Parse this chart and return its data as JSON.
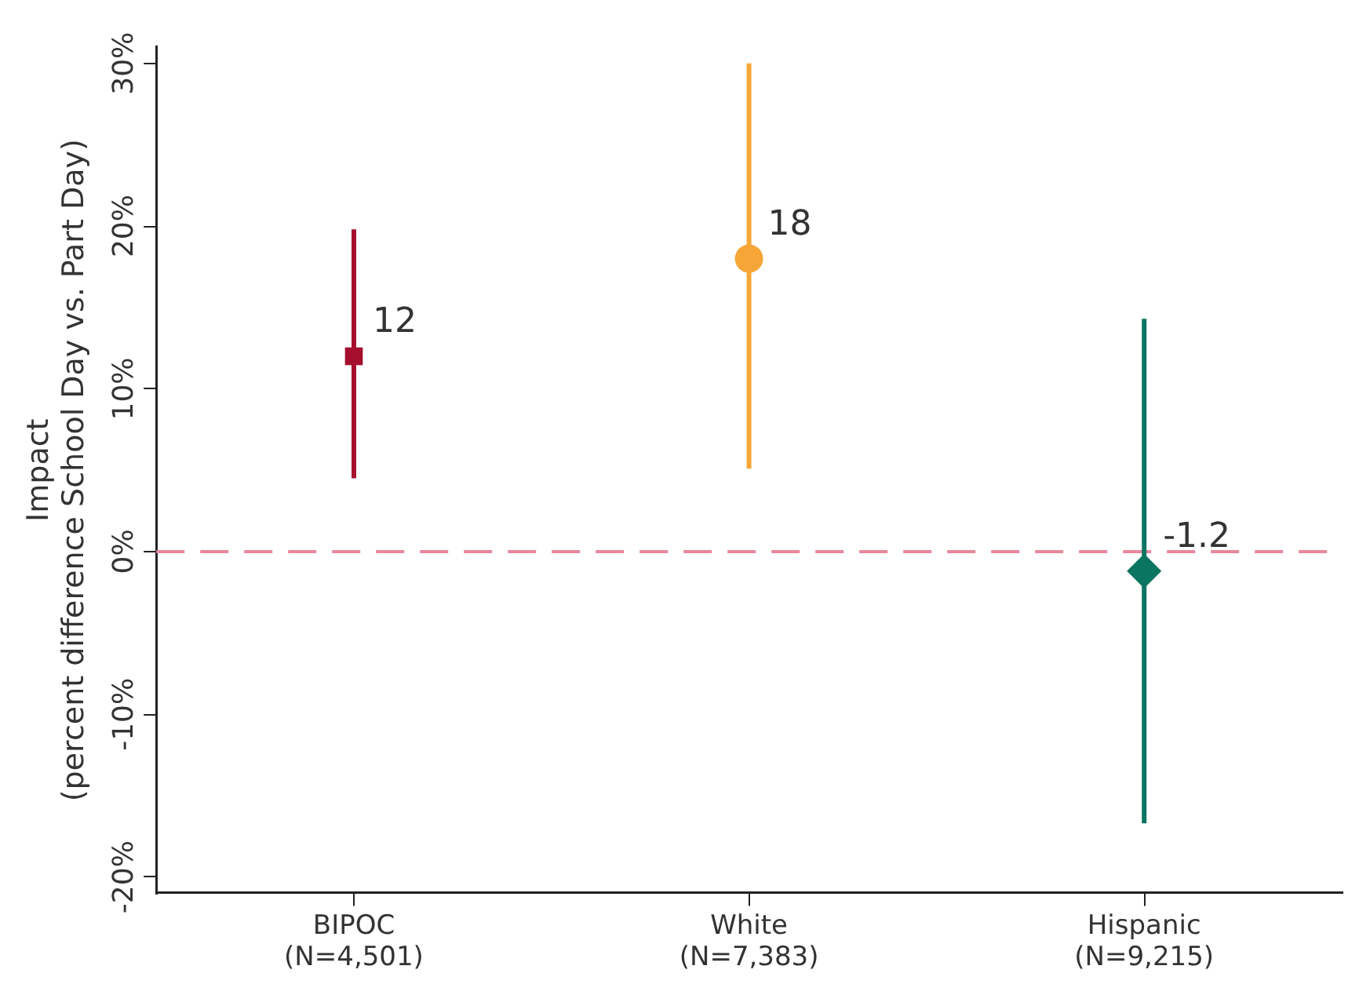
{
  "chart_data": {
    "type": "scatter",
    "ylabel": "Impact\n(percent difference School Day vs. Part Day)",
    "categories": [
      "BIPOC\n(N=4,501)",
      "White\n(N=7,383)",
      "Hispanic\n(N=9,215)"
    ],
    "series": [
      {
        "color": "#a50f2d",
        "marker": "square",
        "values": [
          12,
          null,
          null
        ],
        "errors": [
          [
            4.5,
            19.8
          ],
          null,
          null
        ]
      },
      {
        "color": "#f5a637",
        "marker": "circle",
        "values": [
          null,
          18,
          null
        ],
        "errors": [
          null,
          [
            5.1,
            30
          ],
          null
        ]
      },
      {
        "color": "#0a7560",
        "marker": "diamond",
        "values": [
          null,
          null,
          -1.2
        ],
        "errors": [
          null,
          null,
          [
            -16.7,
            14.3
          ]
        ]
      }
    ],
    "ylim": [
      -21,
      31
    ],
    "yticks": [
      {
        "value": -20,
        "label": "-20%"
      },
      {
        "value": -10,
        "label": "-10%"
      },
      {
        "value": 0,
        "label": "0%"
      },
      {
        "value": 10,
        "label": "10%"
      },
      {
        "value": 20,
        "label": "20%"
      },
      {
        "value": 30,
        "label": "30%"
      }
    ],
    "ref_lines": [
      {
        "axis": "y",
        "value": 0,
        "color": "#e8879c",
        "line_style": "dashed"
      }
    ],
    "data_labels": true,
    "grid": false,
    "legend": false
  }
}
